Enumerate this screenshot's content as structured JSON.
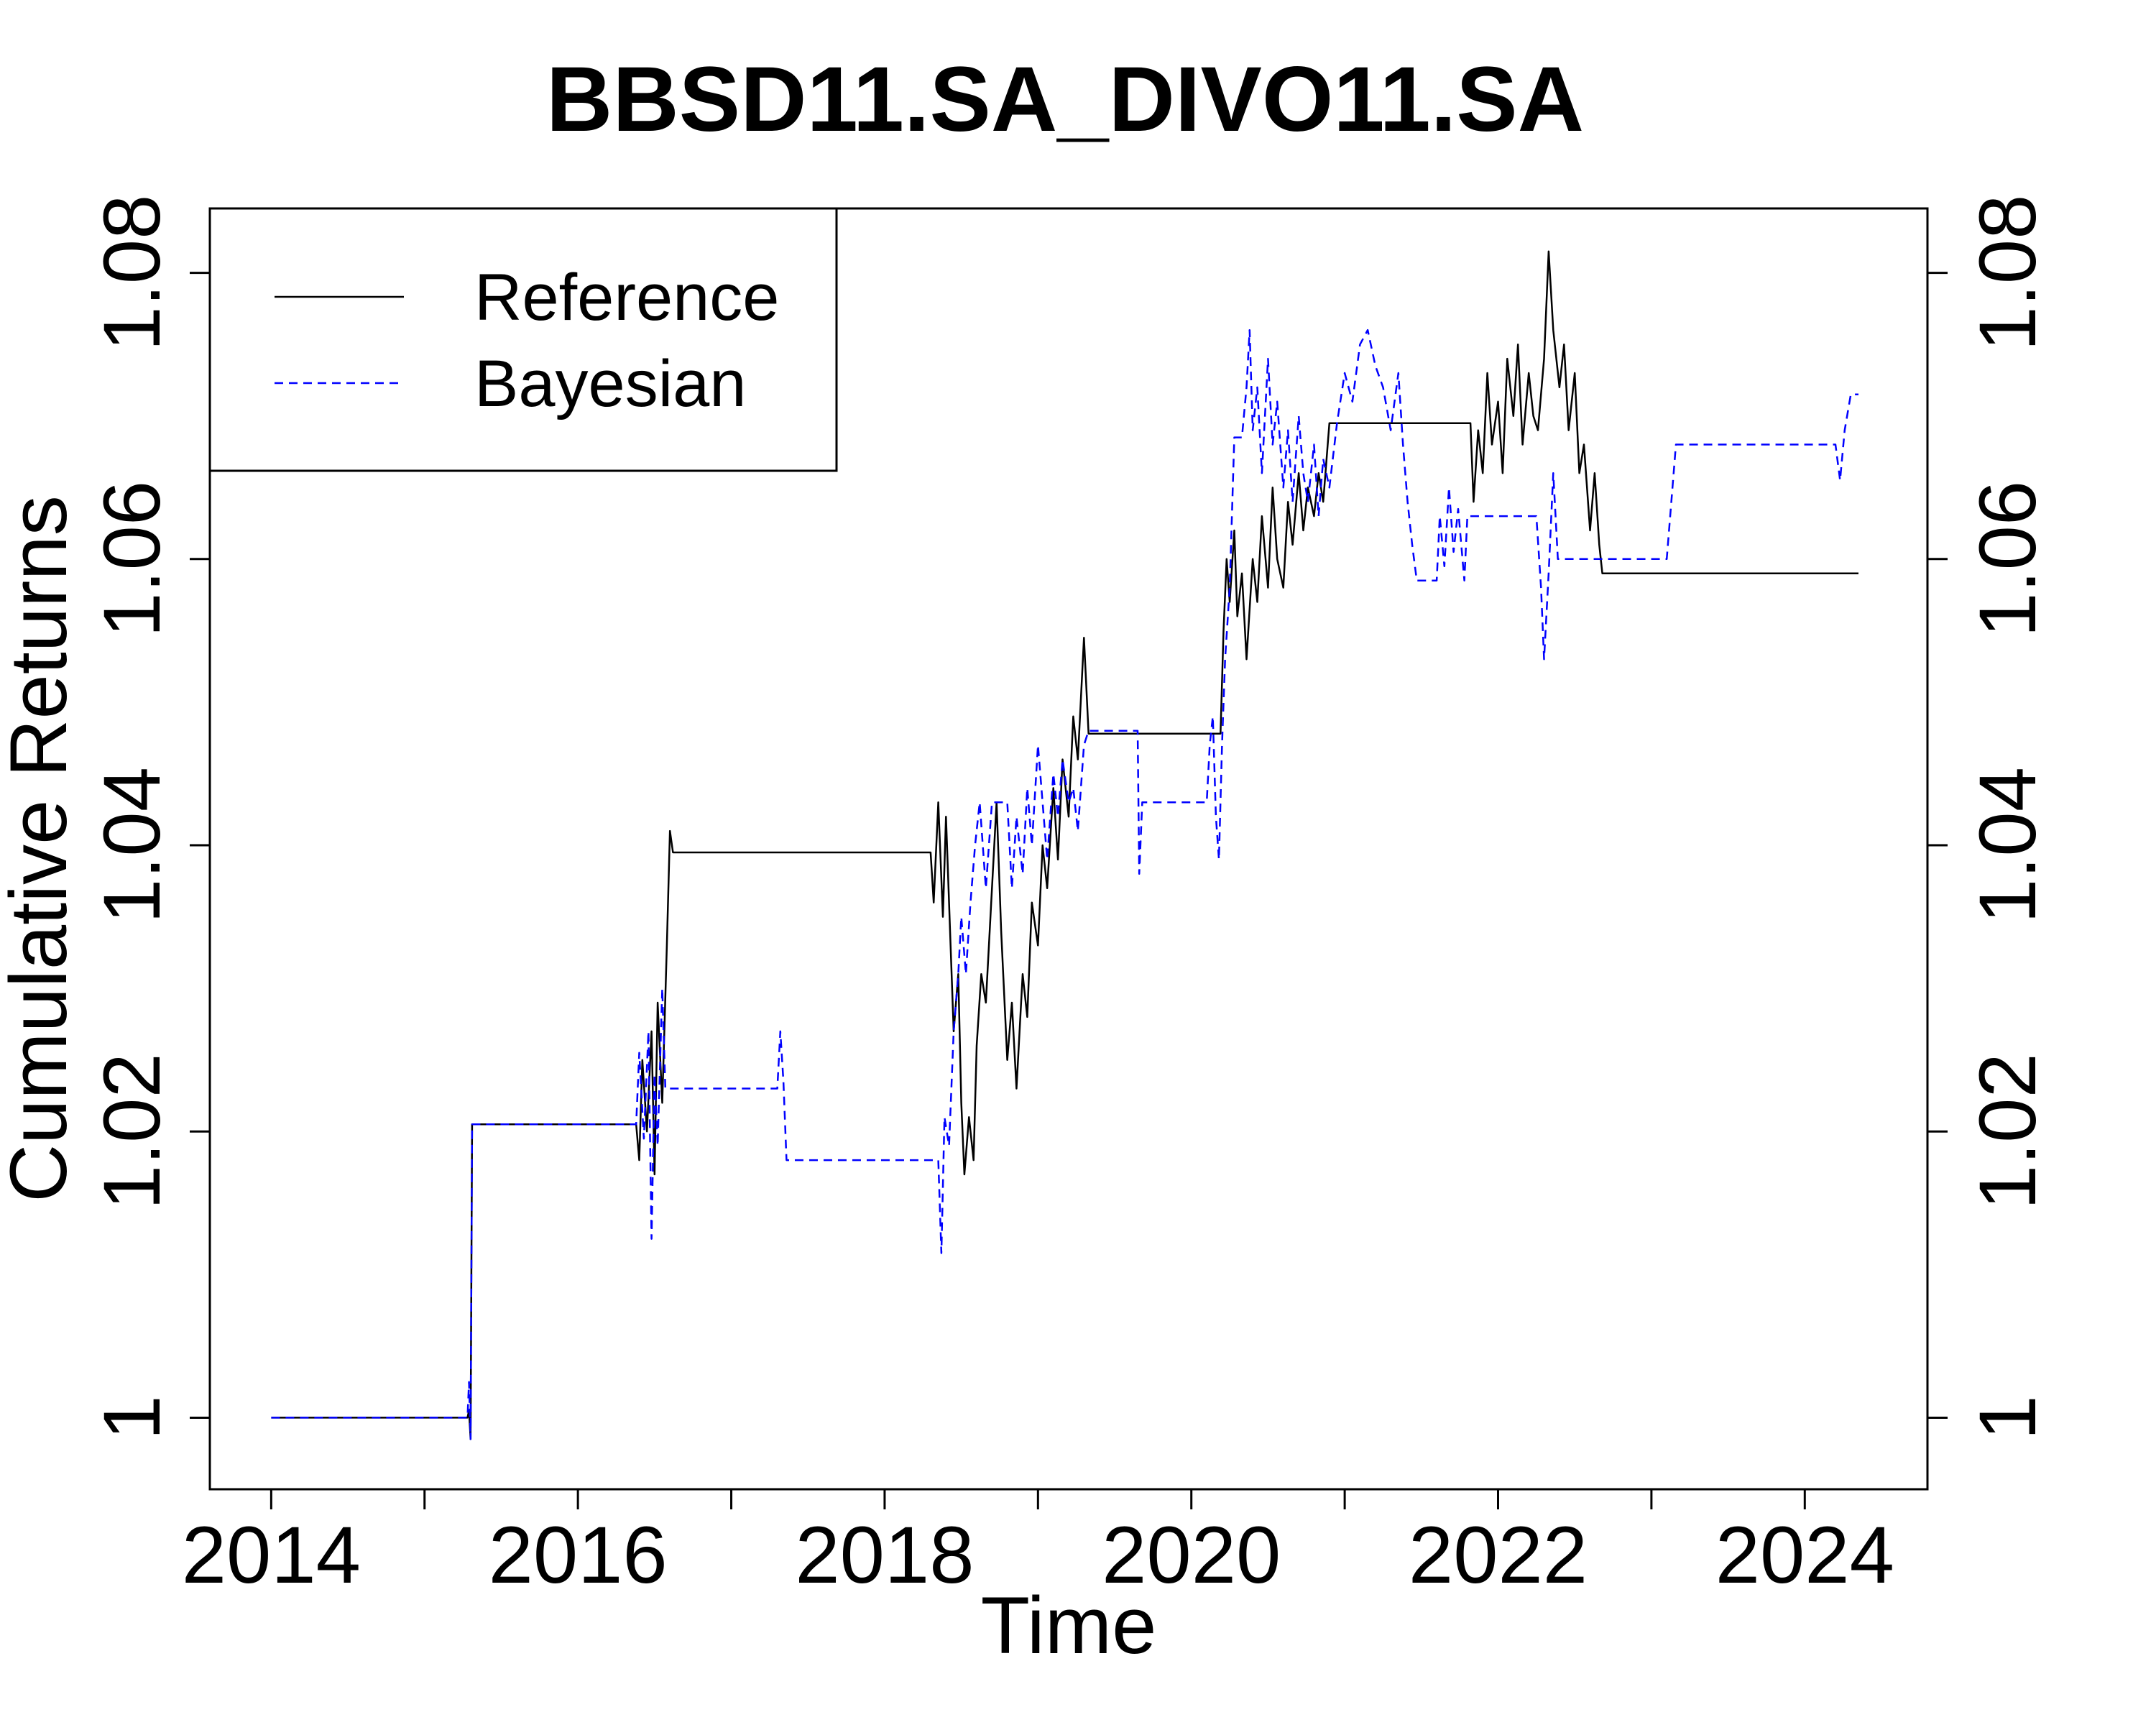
{
  "chart_data": {
    "type": "line",
    "title": "BBSD11.SA_DIVO11.SA",
    "xlabel": "Time",
    "ylabel": "Cumulative Returns",
    "xlim": [
      2013.6,
      2024.8
    ],
    "ylim": [
      0.995,
      1.0845
    ],
    "x_ticks": [
      2014,
      2016,
      2018,
      2020,
      2022,
      2024
    ],
    "x_minor_ticks": [
      2015,
      2017,
      2019,
      2021,
      2023
    ],
    "x_tick_labels": [
      "2014",
      "2016",
      "2018",
      "2020",
      "2022",
      "2024"
    ],
    "y_ticks": [
      1.0,
      1.02,
      1.04,
      1.06,
      1.08
    ],
    "y_tick_labels": [
      "1",
      "1.02",
      "1.04",
      "1.06",
      "1.08"
    ],
    "grid": false,
    "legend": {
      "position": "top-left",
      "entries": [
        "Reference",
        "Bayesian"
      ]
    },
    "series": [
      {
        "name": "Reference",
        "color": "#000000",
        "style": "solid",
        "points": [
          [
            2014.0,
            1.0
          ],
          [
            2015.28,
            1.0
          ],
          [
            2015.29,
            1.0005
          ],
          [
            2015.3,
            0.9985
          ],
          [
            2015.31,
            1.0205
          ],
          [
            2016.38,
            1.0205
          ],
          [
            2016.4,
            1.018
          ],
          [
            2016.42,
            1.025
          ],
          [
            2016.45,
            1.02
          ],
          [
            2016.48,
            1.027
          ],
          [
            2016.5,
            1.017
          ],
          [
            2016.52,
            1.029
          ],
          [
            2016.55,
            1.022
          ],
          [
            2016.58,
            1.033
          ],
          [
            2016.6,
            1.041
          ],
          [
            2016.62,
            1.0395
          ],
          [
            2018.3,
            1.0395
          ],
          [
            2018.32,
            1.036
          ],
          [
            2018.35,
            1.043
          ],
          [
            2018.38,
            1.035
          ],
          [
            2018.4,
            1.042
          ],
          [
            2018.43,
            1.033
          ],
          [
            2018.45,
            1.027
          ],
          [
            2018.48,
            1.031
          ],
          [
            2018.5,
            1.022
          ],
          [
            2018.52,
            1.017
          ],
          [
            2018.55,
            1.021
          ],
          [
            2018.58,
            1.018
          ],
          [
            2018.6,
            1.026
          ],
          [
            2018.63,
            1.031
          ],
          [
            2018.66,
            1.029
          ],
          [
            2018.7,
            1.037
          ],
          [
            2018.73,
            1.043
          ],
          [
            2018.76,
            1.034
          ],
          [
            2018.8,
            1.025
          ],
          [
            2018.83,
            1.029
          ],
          [
            2018.86,
            1.023
          ],
          [
            2018.9,
            1.031
          ],
          [
            2018.93,
            1.028
          ],
          [
            2018.96,
            1.036
          ],
          [
            2019.0,
            1.033
          ],
          [
            2019.03,
            1.04
          ],
          [
            2019.06,
            1.037
          ],
          [
            2019.1,
            1.044
          ],
          [
            2019.13,
            1.039
          ],
          [
            2019.16,
            1.046
          ],
          [
            2019.2,
            1.042
          ],
          [
            2019.23,
            1.049
          ],
          [
            2019.26,
            1.046
          ],
          [
            2019.3,
            1.0545
          ],
          [
            2019.33,
            1.0478
          ],
          [
            2020.19,
            1.0478
          ],
          [
            2020.21,
            1.055
          ],
          [
            2020.23,
            1.06
          ],
          [
            2020.25,
            1.057
          ],
          [
            2020.28,
            1.062
          ],
          [
            2020.3,
            1.056
          ],
          [
            2020.33,
            1.059
          ],
          [
            2020.36,
            1.053
          ],
          [
            2020.4,
            1.06
          ],
          [
            2020.43,
            1.057
          ],
          [
            2020.46,
            1.063
          ],
          [
            2020.5,
            1.058
          ],
          [
            2020.53,
            1.065
          ],
          [
            2020.56,
            1.06
          ],
          [
            2020.6,
            1.058
          ],
          [
            2020.63,
            1.064
          ],
          [
            2020.66,
            1.061
          ],
          [
            2020.7,
            1.066
          ],
          [
            2020.73,
            1.062
          ],
          [
            2020.76,
            1.065
          ],
          [
            2020.8,
            1.063
          ],
          [
            2020.83,
            1.066
          ],
          [
            2020.86,
            1.064
          ],
          [
            2020.9,
            1.0695
          ],
          [
            2021.82,
            1.0695
          ],
          [
            2021.84,
            1.064
          ],
          [
            2021.87,
            1.069
          ],
          [
            2021.9,
            1.066
          ],
          [
            2021.93,
            1.073
          ],
          [
            2021.96,
            1.068
          ],
          [
            2022.0,
            1.071
          ],
          [
            2022.03,
            1.066
          ],
          [
            2022.06,
            1.074
          ],
          [
            2022.1,
            1.07
          ],
          [
            2022.13,
            1.075
          ],
          [
            2022.16,
            1.068
          ],
          [
            2022.2,
            1.073
          ],
          [
            2022.23,
            1.07
          ],
          [
            2022.26,
            1.069
          ],
          [
            2022.3,
            1.074
          ],
          [
            2022.33,
            1.0815
          ],
          [
            2022.36,
            1.076
          ],
          [
            2022.4,
            1.072
          ],
          [
            2022.43,
            1.075
          ],
          [
            2022.46,
            1.069
          ],
          [
            2022.5,
            1.073
          ],
          [
            2022.53,
            1.066
          ],
          [
            2022.56,
            1.068
          ],
          [
            2022.6,
            1.062
          ],
          [
            2022.63,
            1.066
          ],
          [
            2022.66,
            1.061
          ],
          [
            2022.68,
            1.059
          ],
          [
            2024.35,
            1.059
          ]
        ]
      },
      {
        "name": "Bayesian",
        "color": "#0000ff",
        "style": "dashed",
        "points": [
          [
            2014.0,
            1.0
          ],
          [
            2015.28,
            1.0
          ],
          [
            2015.29,
            1.0025
          ],
          [
            2015.3,
            0.9985
          ],
          [
            2015.31,
            1.0205
          ],
          [
            2016.38,
            1.0205
          ],
          [
            2016.4,
            1.0255
          ],
          [
            2016.43,
            1.0195
          ],
          [
            2016.46,
            1.027
          ],
          [
            2016.48,
            1.0125
          ],
          [
            2016.5,
            1.024
          ],
          [
            2016.52,
            1.019
          ],
          [
            2016.55,
            1.03
          ],
          [
            2016.57,
            1.023
          ],
          [
            2017.3,
            1.023
          ],
          [
            2017.32,
            1.027
          ],
          [
            2017.34,
            1.0235
          ],
          [
            2017.36,
            1.018
          ],
          [
            2018.35,
            1.018
          ],
          [
            2018.37,
            1.0115
          ],
          [
            2018.39,
            1.021
          ],
          [
            2018.42,
            1.019
          ],
          [
            2018.45,
            1.027
          ],
          [
            2018.48,
            1.031
          ],
          [
            2018.5,
            1.035
          ],
          [
            2018.53,
            1.031
          ],
          [
            2018.56,
            1.036
          ],
          [
            2018.59,
            1.04
          ],
          [
            2018.62,
            1.043
          ],
          [
            2018.66,
            1.037
          ],
          [
            2018.7,
            1.043
          ],
          [
            2018.8,
            1.043
          ],
          [
            2018.83,
            1.037
          ],
          [
            2018.86,
            1.042
          ],
          [
            2018.9,
            1.038
          ],
          [
            2018.93,
            1.044
          ],
          [
            2018.96,
            1.04
          ],
          [
            2019.0,
            1.047
          ],
          [
            2019.03,
            1.043
          ],
          [
            2019.06,
            1.039
          ],
          [
            2019.1,
            1.045
          ],
          [
            2019.13,
            1.042
          ],
          [
            2019.16,
            1.046
          ],
          [
            2019.2,
            1.043
          ],
          [
            2019.23,
            1.044
          ],
          [
            2019.26,
            1.041
          ],
          [
            2019.3,
            1.047
          ],
          [
            2019.33,
            1.048
          ],
          [
            2019.65,
            1.048
          ],
          [
            2019.66,
            1.038
          ],
          [
            2019.68,
            1.043
          ],
          [
            2020.1,
            1.043
          ],
          [
            2020.12,
            1.047
          ],
          [
            2020.14,
            1.049
          ],
          [
            2020.16,
            1.042
          ],
          [
            2020.18,
            1.039
          ],
          [
            2020.2,
            1.047
          ],
          [
            2020.22,
            1.053
          ],
          [
            2020.25,
            1.058
          ],
          [
            2020.28,
            1.0685
          ],
          [
            2020.33,
            1.0685
          ],
          [
            2020.36,
            1.072
          ],
          [
            2020.38,
            1.076
          ],
          [
            2020.4,
            1.069
          ],
          [
            2020.43,
            1.072
          ],
          [
            2020.46,
            1.066
          ],
          [
            2020.5,
            1.074
          ],
          [
            2020.53,
            1.068
          ],
          [
            2020.56,
            1.071
          ],
          [
            2020.6,
            1.065
          ],
          [
            2020.63,
            1.069
          ],
          [
            2020.66,
            1.064
          ],
          [
            2020.7,
            1.07
          ],
          [
            2020.73,
            1.066
          ],
          [
            2020.76,
            1.064
          ],
          [
            2020.8,
            1.068
          ],
          [
            2020.83,
            1.063
          ],
          [
            2020.86,
            1.067
          ],
          [
            2020.9,
            1.065
          ],
          [
            2020.95,
            1.0695
          ],
          [
            2021.0,
            1.073
          ],
          [
            2021.05,
            1.071
          ],
          [
            2021.1,
            1.075
          ],
          [
            2021.15,
            1.076
          ],
          [
            2021.2,
            1.0735
          ],
          [
            2021.25,
            1.072
          ],
          [
            2021.3,
            1.069
          ],
          [
            2021.35,
            1.073
          ],
          [
            2021.38,
            1.068
          ],
          [
            2021.41,
            1.064
          ],
          [
            2021.44,
            1.061
          ],
          [
            2021.47,
            1.0585
          ],
          [
            2021.6,
            1.0585
          ],
          [
            2021.62,
            1.063
          ],
          [
            2021.65,
            1.0595
          ],
          [
            2021.68,
            1.065
          ],
          [
            2021.71,
            1.0605
          ],
          [
            2021.74,
            1.0635
          ],
          [
            2021.78,
            1.0585
          ],
          [
            2021.8,
            1.063
          ],
          [
            2022.25,
            1.063
          ],
          [
            2022.28,
            1.058
          ],
          [
            2022.3,
            1.053
          ],
          [
            2022.33,
            1.059
          ],
          [
            2022.36,
            1.066
          ],
          [
            2022.39,
            1.06
          ],
          [
            2023.1,
            1.06
          ],
          [
            2023.13,
            1.064
          ],
          [
            2023.16,
            1.068
          ],
          [
            2024.2,
            1.068
          ],
          [
            2024.23,
            1.0655
          ],
          [
            2024.26,
            1.069
          ],
          [
            2024.3,
            1.0715
          ],
          [
            2024.35,
            1.0715
          ]
        ]
      }
    ]
  }
}
